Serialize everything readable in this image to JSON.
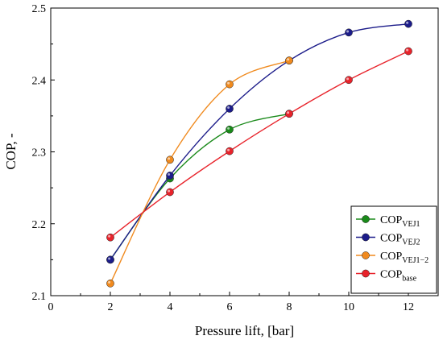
{
  "chart_data": {
    "type": "line",
    "xlabel": "Pressure lift, [bar]",
    "ylabel": "COP, -",
    "xlim": [
      0,
      13
    ],
    "ylim": [
      2.1,
      2.5
    ],
    "xticks": [
      0,
      2,
      4,
      6,
      8,
      10,
      12
    ],
    "yticks": [
      2.1,
      2.2,
      2.3,
      2.4,
      2.5
    ],
    "xtick_labels": [
      "0",
      "2",
      "4",
      "6",
      "8",
      "10",
      "12"
    ],
    "ytick_labels": [
      "2.1",
      "2.2",
      "2.3",
      "2.4",
      "2.5"
    ],
    "legend_position": "bottom-right",
    "series": [
      {
        "name": "COP",
        "subscript": "VEJ1",
        "color": "#1a8a1a",
        "x": [
          2,
          4,
          6,
          8
        ],
        "y": [
          2.15,
          2.263,
          2.331,
          2.353
        ]
      },
      {
        "name": "COP",
        "subscript": "VEJ2",
        "color": "#1c1c8a",
        "x": [
          2,
          4,
          6,
          8,
          10,
          12
        ],
        "y": [
          2.15,
          2.267,
          2.36,
          2.427,
          2.466,
          2.478
        ]
      },
      {
        "name": "COP",
        "subscript": "VEJ1−2",
        "color": "#f08a1e",
        "x": [
          2,
          4,
          6,
          8
        ],
        "y": [
          2.117,
          2.289,
          2.394,
          2.427
        ]
      },
      {
        "name": "COP",
        "subscript": "base",
        "color": "#e8232b",
        "x": [
          2,
          4,
          6,
          8,
          10,
          12
        ],
        "y": [
          2.181,
          2.244,
          2.301,
          2.353,
          2.4,
          2.44
        ]
      }
    ]
  }
}
